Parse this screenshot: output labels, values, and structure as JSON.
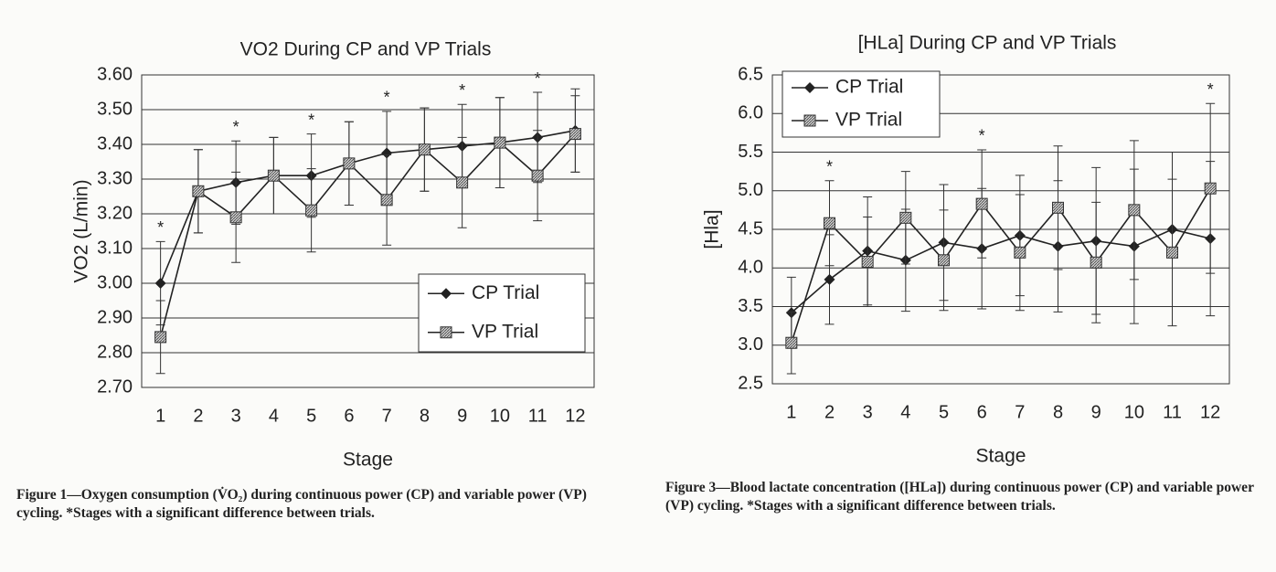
{
  "chart_data": [
    {
      "type": "line",
      "title": "VO2 During CP and VP Trials",
      "x_label": "Stage",
      "y_label": "VO2 (L/min)",
      "categories": [
        "1",
        "2",
        "3",
        "4",
        "5",
        "6",
        "7",
        "8",
        "9",
        "10",
        "11",
        "12"
      ],
      "series": [
        {
          "name": "CP Trial",
          "color": "#222222",
          "marker": "diamond",
          "values": [
            3.0,
            3.265,
            3.29,
            3.31,
            3.31,
            3.345,
            3.375,
            3.385,
            3.395,
            3.405,
            3.42,
            3.44
          ],
          "errors": [
            0.12,
            0.12,
            0.12,
            0.11,
            0.12,
            0.12,
            0.12,
            0.12,
            0.12,
            0.13,
            0.13,
            0.12
          ]
        },
        {
          "name": "VP Trial",
          "color": "#222222",
          "marker": "square",
          "values": [
            2.845,
            3.265,
            3.19,
            3.31,
            3.21,
            3.345,
            3.24,
            3.385,
            3.29,
            3.405,
            3.31,
            3.43
          ],
          "errors": [
            0.105,
            0.12,
            0.13,
            0.11,
            0.12,
            0.12,
            0.13,
            0.12,
            0.13,
            0.13,
            0.13,
            0.11
          ]
        }
      ],
      "ylim": [
        2.7,
        3.6
      ],
      "yticks": [
        {
          "value": 2.7,
          "label": "2.70"
        },
        {
          "value": 2.8,
          "label": "2.80"
        },
        {
          "value": 2.9,
          "label": "2.90"
        },
        {
          "value": 3.0,
          "label": "3.00"
        },
        {
          "value": 3.1,
          "label": "3.10"
        },
        {
          "value": 3.2,
          "label": "3.20"
        },
        {
          "value": 3.3,
          "label": "3.30"
        },
        {
          "value": 3.4,
          "label": "3.40"
        },
        {
          "value": 3.5,
          "label": "3.50"
        },
        {
          "value": 3.6,
          "label": "3.60"
        }
      ],
      "grid": true,
      "legend": "lower right",
      "annotations": [
        {
          "text": "*",
          "x": "1"
        },
        {
          "text": "*",
          "x": "3"
        },
        {
          "text": "*",
          "x": "5"
        },
        {
          "text": "*",
          "x": "7"
        },
        {
          "text": "*",
          "x": "9"
        },
        {
          "text": "*",
          "x": "11"
        }
      ],
      "caption": "Figure 1—Oxygen consumption (V̇O₂) during continuous power (CP) and variable power (VP) cycling. *Stages with a significant difference between trials."
    },
    {
      "type": "line",
      "title": "[HLa] During CP and VP Trials",
      "x_label": "Stage",
      "y_label": "[Hla]",
      "categories": [
        "1",
        "2",
        "3",
        "4",
        "5",
        "6",
        "7",
        "8",
        "9",
        "10",
        "11",
        "12"
      ],
      "series": [
        {
          "name": "CP Trial",
          "color": "#222222",
          "marker": "diamond",
          "values": [
            3.42,
            3.85,
            4.22,
            4.1,
            4.33,
            4.25,
            4.42,
            4.28,
            4.35,
            4.28,
            4.5,
            4.38
          ],
          "errors": [
            0.46,
            0.58,
            0.7,
            0.66,
            0.75,
            0.78,
            0.78,
            0.85,
            0.95,
            1.0,
            1.0,
            1.0
          ]
        },
        {
          "name": "VP Trial",
          "color": "#222222",
          "marker": "square",
          "values": [
            3.03,
            4.58,
            4.08,
            4.65,
            4.1,
            4.83,
            4.2,
            4.78,
            4.07,
            4.75,
            4.2,
            5.03
          ],
          "errors": [
            0.4,
            0.55,
            0.58,
            0.6,
            0.65,
            0.7,
            0.75,
            0.8,
            0.78,
            0.9,
            0.95,
            1.1
          ]
        }
      ],
      "ylim": [
        2.5,
        6.5
      ],
      "yticks": [
        2.5,
        {
          "value": 3,
          "label": "3.0"
        },
        3.5,
        {
          "value": 4,
          "label": "4.0"
        },
        4.5,
        {
          "value": 5,
          "label": "5.0"
        },
        5.5,
        {
          "value": 6,
          "label": "6.0"
        },
        6.5
      ],
      "grid": true,
      "legend": "upper left",
      "annotations": [
        {
          "text": "*",
          "x": "2"
        },
        {
          "text": "*",
          "x": "6"
        },
        {
          "text": "*",
          "x": "12"
        }
      ],
      "caption": "Figure 3—Blood lactate concentration ([HLa]) during continuous power (CP) and variable power (VP) cycling. *Stages with a significant difference between trials."
    }
  ]
}
